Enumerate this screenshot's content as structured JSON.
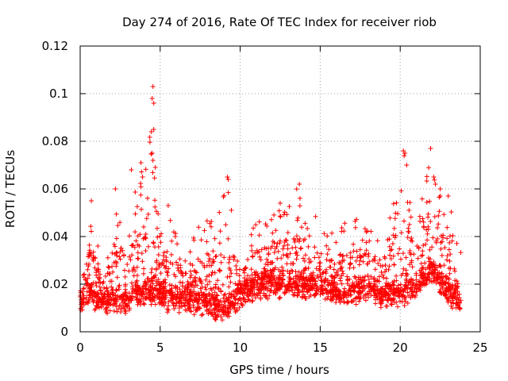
{
  "chart_data": {
    "type": "scatter",
    "title": "Day 274 of 2016, Rate Of TEC Index for receiver riob",
    "xlabel": "GPS time / hours",
    "ylabel": "ROTI / TECUs",
    "xlim": [
      0,
      25
    ],
    "ylim": [
      0,
      0.12
    ],
    "xticks": [
      0,
      5,
      10,
      15,
      20,
      25
    ],
    "xtick_labels": [
      "0",
      "5",
      "10",
      "15",
      "20",
      "25"
    ],
    "yticks": [
      0,
      0.02,
      0.04,
      0.06,
      0.08,
      0.1,
      0.12
    ],
    "ytick_labels": [
      "0",
      "0.02",
      "0.04",
      "0.06",
      "0.08",
      "0.1",
      "0.12"
    ],
    "grid": true,
    "marker": "plus",
    "series_color": "#ff0000",
    "data_range": [
      0.0,
      23.8
    ],
    "envelope": [
      {
        "x": 0.0,
        "base": 0.013,
        "upper": 0.018
      },
      {
        "x": 0.6,
        "base": 0.016,
        "upper": 0.055
      },
      {
        "x": 1.5,
        "base": 0.012,
        "upper": 0.025
      },
      {
        "x": 2.2,
        "base": 0.014,
        "upper": 0.06
      },
      {
        "x": 3.0,
        "base": 0.013,
        "upper": 0.045
      },
      {
        "x": 3.5,
        "base": 0.017,
        "upper": 0.068
      },
      {
        "x": 4.0,
        "base": 0.016,
        "upper": 0.07
      },
      {
        "x": 4.5,
        "base": 0.018,
        "upper": 0.103
      },
      {
        "x": 5.0,
        "base": 0.016,
        "upper": 0.04
      },
      {
        "x": 5.5,
        "base": 0.014,
        "upper": 0.053
      },
      {
        "x": 6.5,
        "base": 0.014,
        "upper": 0.035
      },
      {
        "x": 7.5,
        "base": 0.013,
        "upper": 0.045
      },
      {
        "x": 8.5,
        "base": 0.011,
        "upper": 0.05
      },
      {
        "x": 9.2,
        "base": 0.01,
        "upper": 0.065
      },
      {
        "x": 10.0,
        "base": 0.016,
        "upper": 0.03
      },
      {
        "x": 11.0,
        "base": 0.019,
        "upper": 0.048
      },
      {
        "x": 12.5,
        "base": 0.02,
        "upper": 0.054
      },
      {
        "x": 13.7,
        "base": 0.02,
        "upper": 0.062
      },
      {
        "x": 15.0,
        "base": 0.019,
        "upper": 0.045
      },
      {
        "x": 16.5,
        "base": 0.016,
        "upper": 0.047
      },
      {
        "x": 18.0,
        "base": 0.018,
        "upper": 0.05
      },
      {
        "x": 19.0,
        "base": 0.015,
        "upper": 0.04
      },
      {
        "x": 20.2,
        "base": 0.017,
        "upper": 0.076
      },
      {
        "x": 21.0,
        "base": 0.02,
        "upper": 0.048
      },
      {
        "x": 21.9,
        "base": 0.025,
        "upper": 0.077
      },
      {
        "x": 22.5,
        "base": 0.022,
        "upper": 0.062
      },
      {
        "x": 23.0,
        "base": 0.017,
        "upper": 0.057
      },
      {
        "x": 23.8,
        "base": 0.013,
        "upper": 0.035
      }
    ]
  }
}
